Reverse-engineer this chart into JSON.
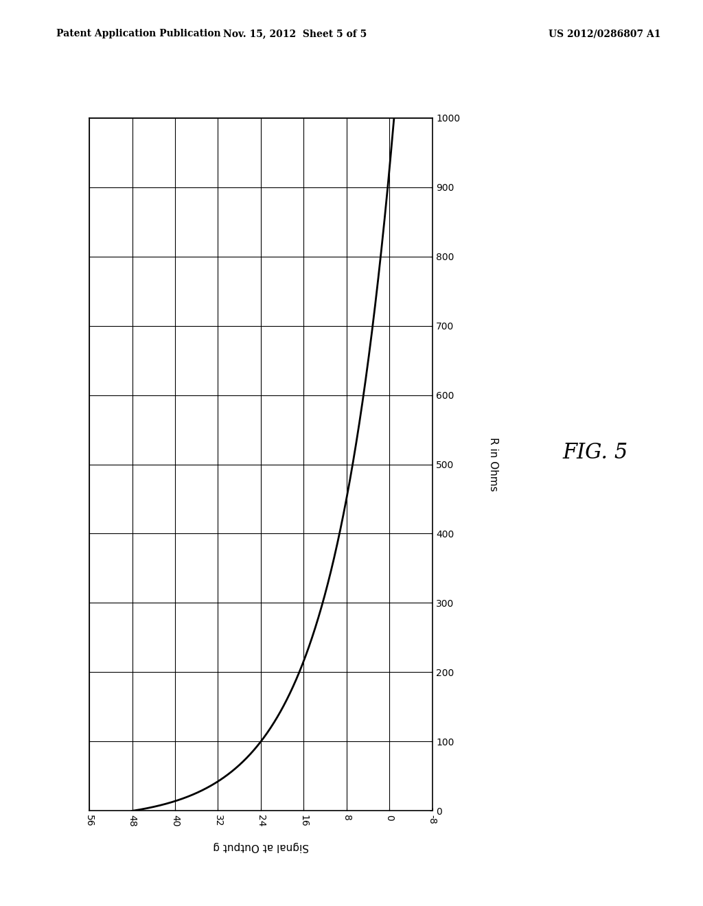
{
  "title_header_left": "Patent Application Publication",
  "title_header_mid": "Nov. 15, 2012  Sheet 5 of 5",
  "title_header_right": "US 2012/0286807 A1",
  "fig_label": "FIG. 5",
  "xlabel": "Signal at Output g",
  "ylabel": "R in Ohms",
  "x_ticks": [
    56,
    48,
    40,
    32,
    24,
    16,
    8,
    0,
    -8
  ],
  "y_ticks": [
    0,
    100,
    200,
    300,
    400,
    500,
    600,
    700,
    800,
    900,
    1000
  ],
  "xlim_left": 56,
  "xlim_right": -8,
  "ylim_bottom": 0,
  "ylim_top": 1000,
  "curve_k": 0.2,
  "curve_x0": 48.5,
  "background_color": "#ffffff",
  "curve_color": "#000000",
  "grid_color": "#000000",
  "header_fontsize": 10,
  "axis_label_fontsize": 11,
  "tick_fontsize": 10,
  "fig_label_fontsize": 22,
  "ylabel_fontsize": 11
}
